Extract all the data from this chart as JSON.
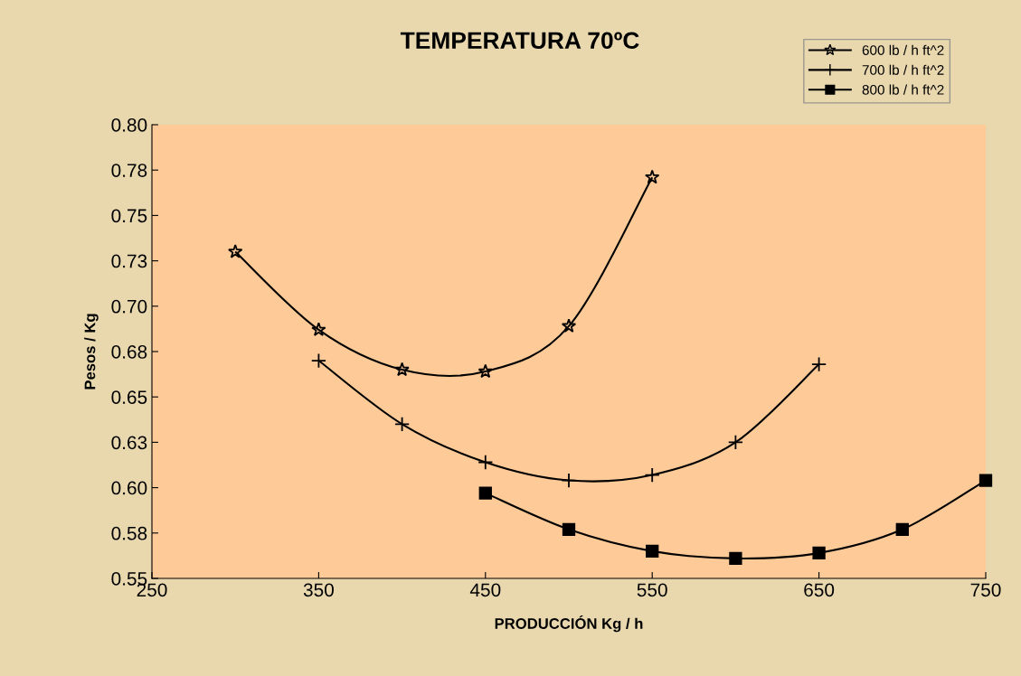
{
  "chart_data": {
    "type": "line",
    "title": "TEMPERATURA 70ºC",
    "xlabel": "PRODUCCIÓN Kg / h",
    "ylabel": "Pesos / Kg",
    "xlim": [
      250,
      750
    ],
    "xticks": [
      250,
      350,
      450,
      550,
      650,
      750
    ],
    "ylim": [
      0.55,
      0.8
    ],
    "yticks": [
      {
        "value": 0.55,
        "label": "0.55"
      },
      {
        "value": 0.575,
        "label": "0.58"
      },
      {
        "value": 0.6,
        "label": "0.60"
      },
      {
        "value": 0.625,
        "label": "0.63"
      },
      {
        "value": 0.65,
        "label": "0.65"
      },
      {
        "value": 0.675,
        "label": "0.68"
      },
      {
        "value": 0.7,
        "label": "0.70"
      },
      {
        "value": 0.725,
        "label": "0.73"
      },
      {
        "value": 0.75,
        "label": "0.75"
      },
      {
        "value": 0.775,
        "label": "0.78"
      },
      {
        "value": 0.8,
        "label": "0.80"
      }
    ],
    "grid": false,
    "legend": "top right",
    "line_style": "solid",
    "series": [
      {
        "name": "600 lb / h ft^2",
        "color": "#000000",
        "marker": "star",
        "x": [
          300,
          350,
          400,
          450,
          500,
          550
        ],
        "values": [
          0.73,
          0.687,
          0.665,
          0.664,
          0.689,
          0.771
        ]
      },
      {
        "name": "700 lb / h ft^2",
        "color": "#000000",
        "marker": "cross",
        "x": [
          350,
          400,
          450,
          500,
          550,
          600,
          650
        ],
        "values": [
          0.67,
          0.635,
          0.614,
          0.604,
          0.607,
          0.625,
          0.668
        ]
      },
      {
        "name": "800 lb / h ft^2",
        "color": "#000000",
        "marker": "square",
        "x": [
          450,
          500,
          550,
          600,
          650,
          700,
          750
        ],
        "values": [
          0.597,
          0.577,
          0.565,
          0.561,
          0.564,
          0.577,
          0.604
        ]
      }
    ]
  }
}
